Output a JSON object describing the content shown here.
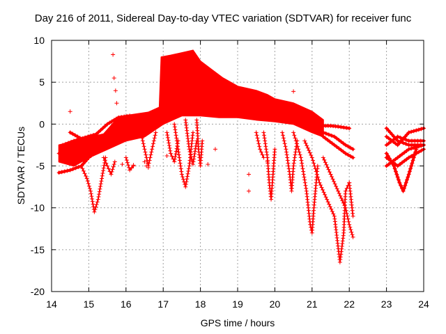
{
  "chart_data": {
    "type": "scatter",
    "title": "Day 216 of 2011, Sidereal Day-to-day VTEC variation (SDTVAR) for receiver func",
    "xlabel": "GPS time / hours",
    "ylabel": "SDTVAR / TECUs",
    "xlim": [
      14,
      24
    ],
    "ylim": [
      -20,
      10
    ],
    "xticks": [
      "14",
      "15",
      "16",
      "17",
      "18",
      "19",
      "20",
      "21",
      "22",
      "23",
      "24"
    ],
    "yticks": [
      "10",
      "5",
      "0",
      "-5",
      "-10",
      "-15",
      "-20"
    ],
    "grid": true,
    "marker": "+",
    "color": "#ff0000",
    "series": [
      {
        "band_upper": [
          [
            14.2,
            -2.5
          ],
          [
            14.5,
            -2.2
          ],
          [
            14.8,
            -1.8
          ],
          [
            15.1,
            -1.5
          ],
          [
            15.4,
            -1.2
          ],
          [
            15.7,
            0.3
          ],
          [
            16.0,
            1.0
          ],
          [
            16.3,
            1.2
          ],
          [
            16.6,
            1.4
          ],
          [
            16.9,
            2.0
          ],
          [
            16.95,
            8.0
          ],
          [
            17.2,
            8.2
          ],
          [
            17.5,
            8.5
          ],
          [
            17.8,
            8.8
          ],
          [
            18.0,
            7.5
          ],
          [
            18.3,
            6.5
          ],
          [
            18.6,
            5.5
          ],
          [
            19.0,
            4.5
          ],
          [
            19.5,
            4.0
          ],
          [
            19.8,
            3.5
          ],
          [
            20.0,
            3.0
          ],
          [
            20.5,
            2.5
          ],
          [
            21.0,
            1.5
          ],
          [
            21.3,
            0.5
          ]
        ],
        "band_lower": [
          [
            21.3,
            -1.5
          ],
          [
            21.0,
            -1.0
          ],
          [
            20.5,
            0.0
          ],
          [
            20.0,
            0.3
          ],
          [
            19.5,
            0.5
          ],
          [
            19.0,
            0.8
          ],
          [
            18.5,
            0.8
          ],
          [
            18.0,
            1.0
          ],
          [
            17.5,
            1.0
          ],
          [
            17.0,
            0.0
          ],
          [
            16.5,
            -1.5
          ],
          [
            16.0,
            -2.0
          ],
          [
            15.5,
            -3.0
          ],
          [
            15.0,
            -4.0
          ],
          [
            14.6,
            -5.0
          ],
          [
            14.2,
            -4.5
          ]
        ],
        "lines": [
          [
            [
              14.2,
              -5.8
            ],
            [
              14.5,
              -5.5
            ],
            [
              14.8,
              -5.0
            ],
            [
              15.0,
              -4.0
            ],
            [
              15.3,
              -3.0
            ],
            [
              15.6,
              -2.0
            ],
            [
              16.0,
              -1.5
            ],
            [
              16.5,
              -0.5
            ],
            [
              17.0,
              0.5
            ]
          ],
          [
            [
              14.3,
              -2.5
            ],
            [
              14.6,
              -2.0
            ],
            [
              14.9,
              -1.6
            ],
            [
              15.2,
              -1.2
            ],
            [
              15.5,
              0.0
            ],
            [
              15.8,
              0.8
            ],
            [
              16.1,
              1.0
            ]
          ],
          [
            [
              14.2,
              -3.5
            ],
            [
              14.5,
              -4.0
            ],
            [
              14.8,
              -3.5
            ],
            [
              15.0,
              -3.0
            ],
            [
              15.3,
              -2.0
            ]
          ],
          [
            [
              14.5,
              -1.0
            ],
            [
              14.7,
              -1.5
            ],
            [
              14.9,
              -2.0
            ],
            [
              15.0,
              -2.2
            ]
          ],
          [
            [
              21.3,
              -0.2
            ],
            [
              21.5,
              -0.2
            ],
            [
              21.7,
              -0.3
            ],
            [
              22.0,
              -0.5
            ]
          ],
          [
            [
              21.3,
              -1.0
            ],
            [
              21.6,
              -1.5
            ],
            [
              21.9,
              -2.5
            ],
            [
              22.1,
              -3.0
            ]
          ],
          [
            [
              21.3,
              -1.5
            ],
            [
              21.6,
              -2.5
            ],
            [
              21.9,
              -3.5
            ],
            [
              22.1,
              -4.0
            ]
          ],
          [
            [
              23.0,
              -0.5
            ],
            [
              23.3,
              -2.0
            ],
            [
              23.6,
              -2.5
            ],
            [
              24.0,
              -2.5
            ]
          ],
          [
            [
              23.0,
              -1.5
            ],
            [
              23.3,
              -2.5
            ],
            [
              23.6,
              -1.0
            ],
            [
              24.0,
              -0.5
            ]
          ],
          [
            [
              23.0,
              -2.5
            ],
            [
              23.3,
              -1.5
            ],
            [
              23.6,
              -2.0
            ],
            [
              24.0,
              -2.0
            ]
          ],
          [
            [
              23.0,
              -5.0
            ],
            [
              23.3,
              -4.0
            ],
            [
              23.6,
              -3.0
            ],
            [
              24.0,
              -2.5
            ]
          ],
          [
            [
              23.0,
              -4.0
            ],
            [
              23.3,
              -5.0
            ],
            [
              23.6,
              -4.0
            ],
            [
              24.0,
              -3.0
            ]
          ],
          [
            [
              23.0,
              -3.5
            ],
            [
              23.2,
              -5.0
            ],
            [
              23.35,
              -7.0
            ],
            [
              23.45,
              -8.0
            ],
            [
              23.6,
              -6.0
            ],
            [
              23.8,
              -3.0
            ]
          ]
        ],
        "dips": [
          [
            [
              14.8,
              -5.0
            ],
            [
              14.95,
              -6.5
            ],
            [
              15.05,
              -8.0
            ],
            [
              15.15,
              -10.5
            ],
            [
              15.25,
              -9.0
            ],
            [
              15.35,
              -6.5
            ],
            [
              15.45,
              -4.0
            ]
          ],
          [
            [
              15.4,
              -4.0
            ],
            [
              15.5,
              -5.0
            ],
            [
              15.6,
              -6.0
            ],
            [
              15.7,
              -4.5
            ]
          ],
          [
            [
              16.0,
              -4.0
            ],
            [
              16.1,
              -5.5
            ],
            [
              16.2,
              -5.0
            ]
          ],
          [
            [
              16.4,
              -1.0
            ],
            [
              16.5,
              -3.0
            ],
            [
              16.6,
              -5.0
            ],
            [
              16.7,
              -3.0
            ],
            [
              16.8,
              -1.0
            ]
          ],
          [
            [
              17.1,
              -1.0
            ],
            [
              17.2,
              -3.5
            ],
            [
              17.3,
              -4.5
            ],
            [
              17.4,
              -2.0
            ]
          ],
          [
            [
              17.3,
              0.0
            ],
            [
              17.4,
              -3.0
            ],
            [
              17.5,
              -6.0
            ],
            [
              17.6,
              -7.5
            ],
            [
              17.7,
              -5.0
            ],
            [
              17.8,
              -1.0
            ]
          ],
          [
            [
              17.6,
              0.5
            ],
            [
              17.7,
              -3.0
            ],
            [
              17.8,
              -4.8
            ],
            [
              17.9,
              -2.0
            ]
          ],
          [
            [
              17.9,
              0.5
            ],
            [
              17.95,
              -3.0
            ],
            [
              18.0,
              -5.0
            ],
            [
              18.05,
              -2.0
            ]
          ],
          [
            [
              19.5,
              -1.0
            ],
            [
              19.6,
              -3.0
            ],
            [
              19.7,
              -4.0
            ]
          ],
          [
            [
              19.7,
              -1.0
            ],
            [
              19.8,
              -4.0
            ],
            [
              19.85,
              -7.0
            ],
            [
              19.9,
              -9.0
            ],
            [
              19.95,
              -6.0
            ],
            [
              20.0,
              -3.0
            ]
          ],
          [
            [
              20.2,
              -1.0
            ],
            [
              20.3,
              -3.0
            ],
            [
              20.4,
              -6.0
            ],
            [
              20.45,
              -8.0
            ],
            [
              20.5,
              -5.0
            ],
            [
              20.6,
              -2.0
            ]
          ],
          [
            [
              20.5,
              -1.0
            ],
            [
              20.7,
              -4.0
            ],
            [
              20.85,
              -8.0
            ],
            [
              20.95,
              -12.0
            ],
            [
              21.0,
              -13.0
            ],
            [
              21.05,
              -10.0
            ],
            [
              21.15,
              -5.0
            ]
          ],
          [
            [
              20.8,
              -2.0
            ],
            [
              21.0,
              -4.0
            ],
            [
              21.2,
              -7.0
            ],
            [
              21.4,
              -9.0
            ],
            [
              21.6,
              -11.0
            ],
            [
              21.75,
              -16.5
            ],
            [
              21.85,
              -13.0
            ],
            [
              21.9,
              -8.0
            ],
            [
              22.0,
              -7.0
            ]
          ],
          [
            [
              21.3,
              -4.0
            ],
            [
              21.5,
              -6.0
            ],
            [
              21.7,
              -8.0
            ],
            [
              21.9,
              -10.0
            ],
            [
              22.0,
              -12.0
            ],
            [
              22.1,
              -13.5
            ]
          ],
          [
            [
              22.0,
              -7.0
            ],
            [
              22.05,
              -9.0
            ],
            [
              22.1,
              -11.0
            ]
          ]
        ],
        "scattered": [
          [
            14.5,
            1.5
          ],
          [
            15.65,
            8.3
          ],
          [
            15.68,
            5.5
          ],
          [
            15.72,
            4.0
          ],
          [
            15.75,
            2.5
          ],
          [
            19.3,
            -6.0
          ],
          [
            19.3,
            -8.0
          ],
          [
            20.5,
            3.9
          ],
          [
            16.5,
            -4.5
          ],
          [
            16.55,
            -5.0
          ],
          [
            15.9,
            -4.8
          ],
          [
            16.2,
            -4.9
          ],
          [
            17.1,
            -3.8
          ],
          [
            18.4,
            -3.0
          ],
          [
            18.2,
            -4.8
          ],
          [
            19.8,
            -4.5
          ],
          [
            16.6,
            -5.2
          ]
        ]
      }
    ]
  }
}
